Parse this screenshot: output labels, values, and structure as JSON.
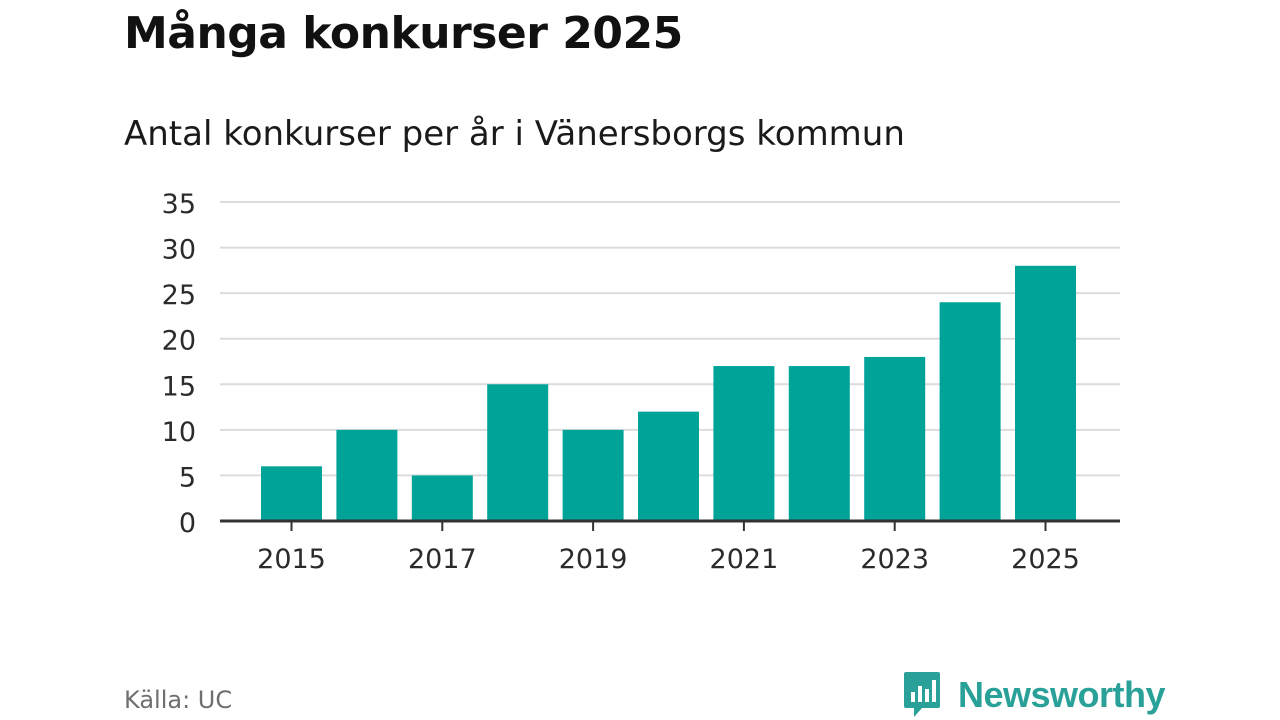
{
  "page": {
    "title": "Många konkurser 2025",
    "subtitle": "Antal konkurser per år i Vänersborgs kommun",
    "source": "Källa: UC",
    "brand": "Newsworthy"
  },
  "colors": {
    "bar": "#00a398",
    "grid": "#dcdcdc",
    "axis": "#333333",
    "brand": "#2aa198"
  },
  "icons": {
    "brand_logo": "bar-chart-speech-bubble-icon"
  },
  "chart_data": {
    "type": "bar",
    "title": "Många konkurser 2025",
    "subtitle": "Antal konkurser per år i Vänersborgs kommun",
    "xlabel": "",
    "ylabel": "",
    "categories": [
      "2015",
      "2016",
      "2017",
      "2018",
      "2019",
      "2020",
      "2021",
      "2022",
      "2023",
      "2024",
      "2025"
    ],
    "values": [
      6,
      10,
      5,
      15,
      10,
      12,
      17,
      17,
      18,
      24,
      28
    ],
    "x_tick_labels": [
      "2015",
      "2017",
      "2019",
      "2021",
      "2023",
      "2025"
    ],
    "y_ticks": [
      0,
      5,
      10,
      15,
      20,
      25,
      30,
      35
    ],
    "ylim": [
      0,
      35
    ],
    "grid": true,
    "legend": "none"
  }
}
